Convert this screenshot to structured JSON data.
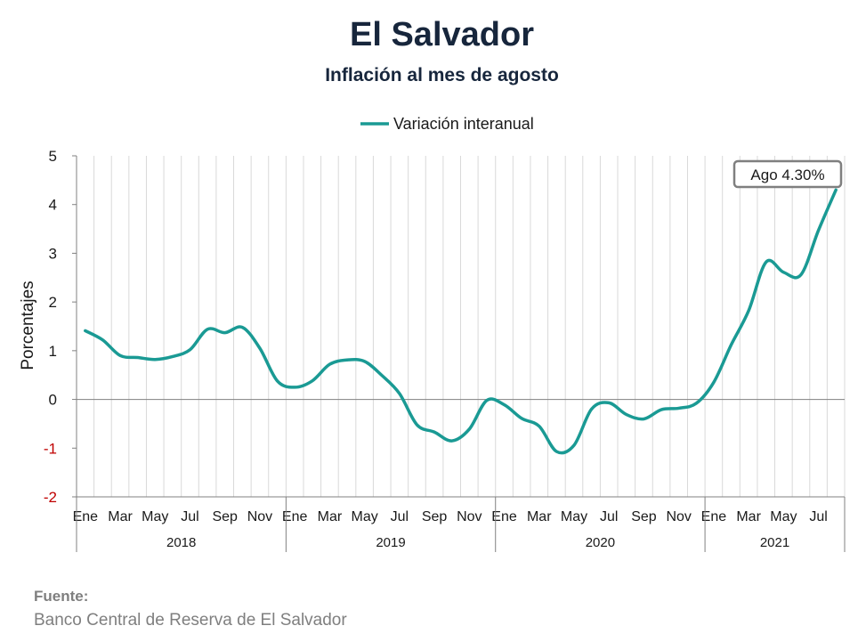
{
  "title": "El Salvador",
  "subtitle": "Inflación al mes de agosto",
  "source": {
    "label": "Fuente:",
    "text": "Banco Central de Reserva de El Salvador"
  },
  "colors": {
    "line": "#1a9a94",
    "grid": "#d9d9d9",
    "zero": "#808080",
    "negative_tick": "#c00000"
  },
  "chart_data": {
    "type": "line",
    "ylabel": "Porcentajes",
    "ylim": [
      -2,
      5
    ],
    "yticks": [
      5,
      4,
      3,
      2,
      1,
      0,
      -1,
      -2
    ],
    "grid": true,
    "legend_position": "top-center",
    "series": [
      {
        "name": "Variación interanual",
        "values": [
          1.41,
          1.22,
          0.9,
          0.86,
          0.82,
          0.88,
          1.02,
          1.44,
          1.37,
          1.48,
          1.05,
          0.38,
          0.25,
          0.38,
          0.72,
          0.81,
          0.78,
          0.49,
          0.12,
          -0.52,
          -0.67,
          -0.85,
          -0.61,
          -0.02,
          -0.11,
          -0.39,
          -0.55,
          -1.07,
          -0.94,
          -0.2,
          -0.07,
          -0.31,
          -0.4,
          -0.21,
          -0.18,
          -0.08,
          0.35,
          1.12,
          1.82,
          2.82,
          2.61,
          2.56,
          3.47,
          4.3
        ]
      }
    ],
    "month_labels": [
      "Ene",
      "",
      "Mar",
      "",
      "May",
      "",
      "Jul",
      "",
      "Sep",
      "",
      "Nov",
      "",
      "Ene",
      "",
      "Mar",
      "",
      "May",
      "",
      "Jul",
      "",
      "Sep",
      "",
      "Nov",
      "",
      "Ene",
      "",
      "Mar",
      "",
      "May",
      "",
      "Jul",
      "",
      "Sep",
      "",
      "Nov",
      "",
      "Ene",
      "",
      "Mar",
      "",
      "May",
      "",
      "Jul",
      ""
    ],
    "years": [
      {
        "label": "2018",
        "months": 12
      },
      {
        "label": "2019",
        "months": 12
      },
      {
        "label": "2020",
        "months": 12
      },
      {
        "label": "2021",
        "months": 8
      }
    ],
    "annotation": {
      "text": "Ago 4.30%",
      "index": 43
    }
  }
}
